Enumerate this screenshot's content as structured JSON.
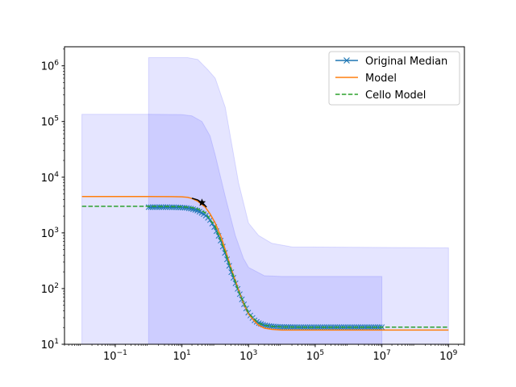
{
  "chart_data": {
    "type": "line",
    "xscale": "log",
    "yscale": "log",
    "xlim": [
      0.003,
      3000000000.0
    ],
    "ylim": [
      10,
      2200000.0
    ],
    "xticks": [
      {
        "value": 0.1,
        "base": "10",
        "exp": "−1"
      },
      {
        "value": 10,
        "base": "10",
        "exp": "1"
      },
      {
        "value": 1000,
        "base": "10",
        "exp": "3"
      },
      {
        "value": 100000,
        "base": "10",
        "exp": "5"
      },
      {
        "value": 10000000,
        "base": "10",
        "exp": "7"
      },
      {
        "value": 1000000000,
        "base": "10",
        "exp": "9"
      }
    ],
    "yticks": [
      {
        "value": 10,
        "base": "10",
        "exp": "1"
      },
      {
        "value": 100,
        "base": "10",
        "exp": "2"
      },
      {
        "value": 1000,
        "base": "10",
        "exp": "3"
      },
      {
        "value": 10000,
        "base": "10",
        "exp": "4"
      },
      {
        "value": 100000,
        "base": "10",
        "exp": "5"
      },
      {
        "value": 1000000,
        "base": "10",
        "exp": "6"
      }
    ],
    "grid": false,
    "legend_position": "top-right",
    "bands": [
      {
        "color": "#0000ff",
        "opacity": 0.1,
        "upper": [
          [
            0.01,
            135000
          ],
          [
            1,
            135000
          ],
          [
            10,
            133000
          ],
          [
            20,
            126000
          ],
          [
            40,
            100000
          ],
          [
            70,
            55000
          ],
          [
            100,
            25000
          ],
          [
            200,
            4500
          ],
          [
            400,
            900
          ],
          [
            700,
            350
          ],
          [
            1000,
            240
          ],
          [
            3000,
            170
          ],
          [
            10000,
            165
          ],
          [
            10000000,
            165
          ]
        ],
        "lower": [
          [
            0.01,
            10
          ],
          [
            10000000,
            10
          ]
        ]
      },
      {
        "color": "#0000ff",
        "opacity": 0.1,
        "upper": [
          [
            1,
            1400000
          ],
          [
            15,
            1400000
          ],
          [
            30,
            1300000
          ],
          [
            60,
            850000
          ],
          [
            100,
            600000
          ],
          [
            200,
            180000
          ],
          [
            500,
            8000
          ],
          [
            1000,
            1500
          ],
          [
            2000,
            900
          ],
          [
            5000,
            650
          ],
          [
            20000,
            560
          ],
          [
            1000000000,
            540
          ]
        ],
        "lower": [
          [
            1,
            10
          ],
          [
            1000000000,
            10
          ]
        ]
      }
    ],
    "series": [
      {
        "name": "Original Median",
        "color": "#1f77b4",
        "style": "solid",
        "marker": "x",
        "x": [
          1,
          2,
          3,
          5,
          7,
          10,
          15,
          20,
          30,
          50,
          70,
          100,
          150,
          200,
          300,
          500,
          700,
          1000,
          1500,
          2000,
          3000,
          5000,
          7000,
          10000,
          30000,
          100000,
          1000000,
          10000000
        ],
        "y": [
          2900,
          2900,
          2900,
          2890,
          2880,
          2850,
          2800,
          2700,
          2500,
          2100,
          1700,
          1200,
          700,
          420,
          200,
          90,
          55,
          36,
          27,
          24,
          22,
          21,
          20.7,
          20.5,
          20.3,
          20.3,
          20.3,
          20.3
        ]
      },
      {
        "name": "Model",
        "color": "#ff7f0e",
        "style": "solid",
        "marker": "",
        "x": [
          0.01,
          1,
          5,
          10,
          15,
          20,
          30,
          50,
          70,
          100,
          150,
          200,
          300,
          500,
          700,
          1000,
          1500,
          2000,
          3000,
          5000,
          10000,
          100000,
          1000000,
          10000000,
          100000000,
          1000000000
        ],
        "y": [
          4500,
          4500,
          4480,
          4450,
          4350,
          4150,
          3700,
          2900,
          2200,
          1500,
          850,
          500,
          230,
          95,
          55,
          35,
          26,
          22,
          19.5,
          18.5,
          18,
          18,
          18,
          18,
          18,
          18
        ]
      },
      {
        "name": "Cello Model",
        "color": "#2ca02c",
        "style": "dashed",
        "marker": "",
        "x": [
          0.01,
          1,
          10,
          20,
          30,
          50,
          100,
          200,
          500,
          1000,
          2000,
          3000,
          5000,
          10000,
          100000,
          10000000,
          1000000000
        ],
        "y": [
          3000,
          3000,
          2950,
          2850,
          2700,
          2300,
          1300,
          450,
          90,
          36,
          24,
          22,
          21,
          20.5,
          20.3,
          20.3,
          20.3
        ]
      }
    ],
    "annotations": [
      {
        "type": "arc",
        "color": "#000000",
        "points": [
          [
            20,
            4200
          ],
          [
            30,
            3900
          ],
          [
            45,
            3300
          ],
          [
            55,
            2900
          ]
        ]
      },
      {
        "type": "star",
        "color": "#000000",
        "x": 40,
        "y": 3500
      }
    ]
  }
}
